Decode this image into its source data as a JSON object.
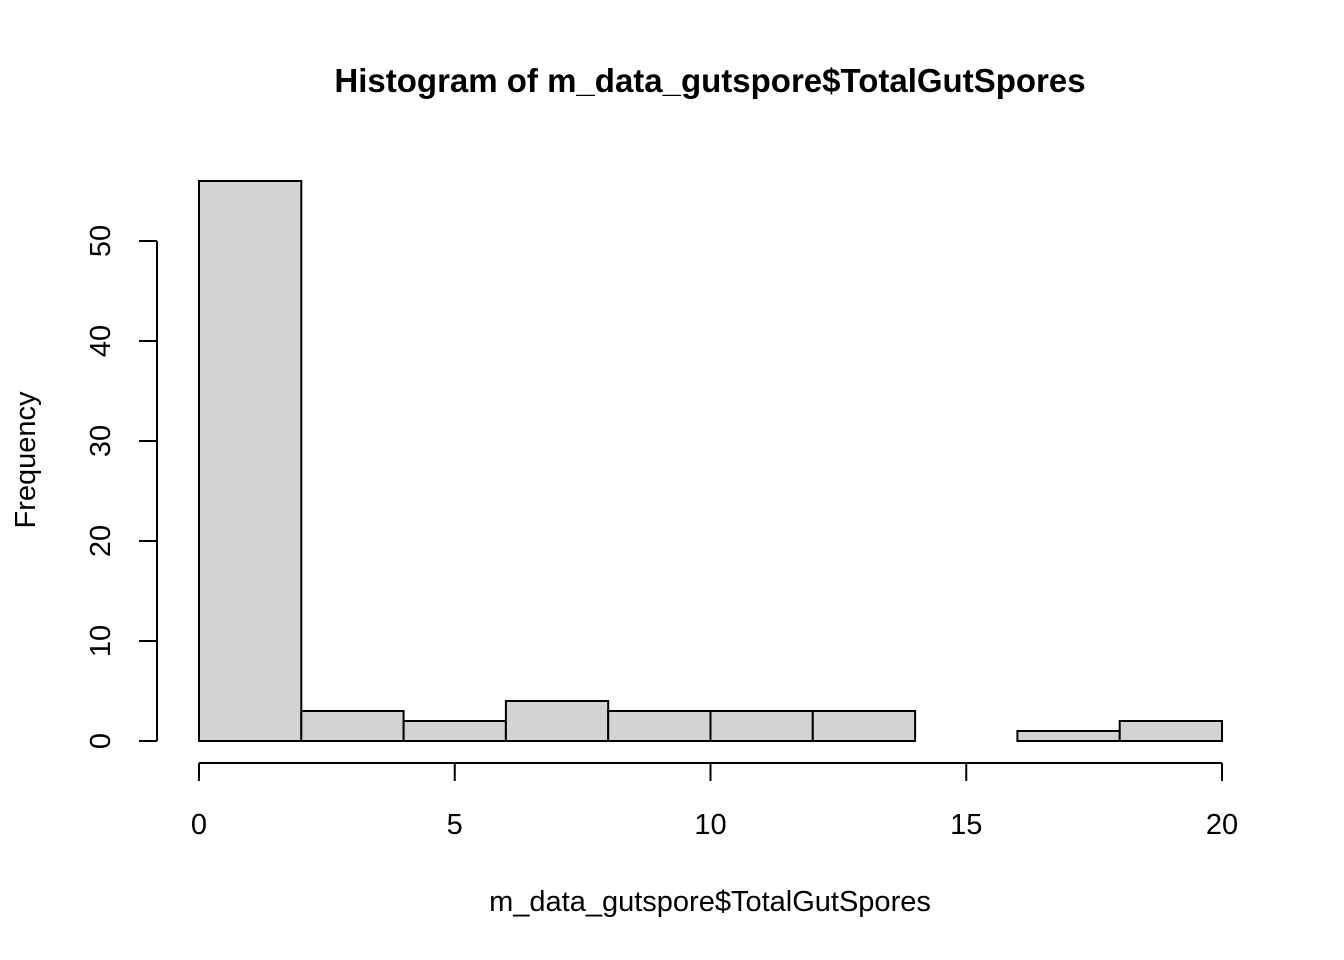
{
  "chart_data": {
    "type": "bar",
    "title": "Histogram of m_data_gutspore$TotalGutSpores",
    "xlabel": "m_data_gutspore$TotalGutSpores",
    "ylabel": "Frequency",
    "bins": [
      {
        "start": 0,
        "end": 2,
        "count": 56
      },
      {
        "start": 2,
        "end": 4,
        "count": 3
      },
      {
        "start": 4,
        "end": 6,
        "count": 2
      },
      {
        "start": 6,
        "end": 8,
        "count": 4
      },
      {
        "start": 8,
        "end": 10,
        "count": 3
      },
      {
        "start": 10,
        "end": 12,
        "count": 3
      },
      {
        "start": 12,
        "end": 14,
        "count": 3
      },
      {
        "start": 14,
        "end": 16,
        "count": 0
      },
      {
        "start": 16,
        "end": 18,
        "count": 1
      },
      {
        "start": 18,
        "end": 20,
        "count": 2
      }
    ],
    "xlim": [
      0,
      20
    ],
    "ylim": [
      0,
      56
    ],
    "x_ticks": [
      "0",
      "5",
      "10",
      "15",
      "20"
    ],
    "y_ticks": [
      "0",
      "10",
      "20",
      "30",
      "40",
      "50"
    ],
    "bar_color": "#d3d3d3",
    "grid": false,
    "legend": "none"
  }
}
